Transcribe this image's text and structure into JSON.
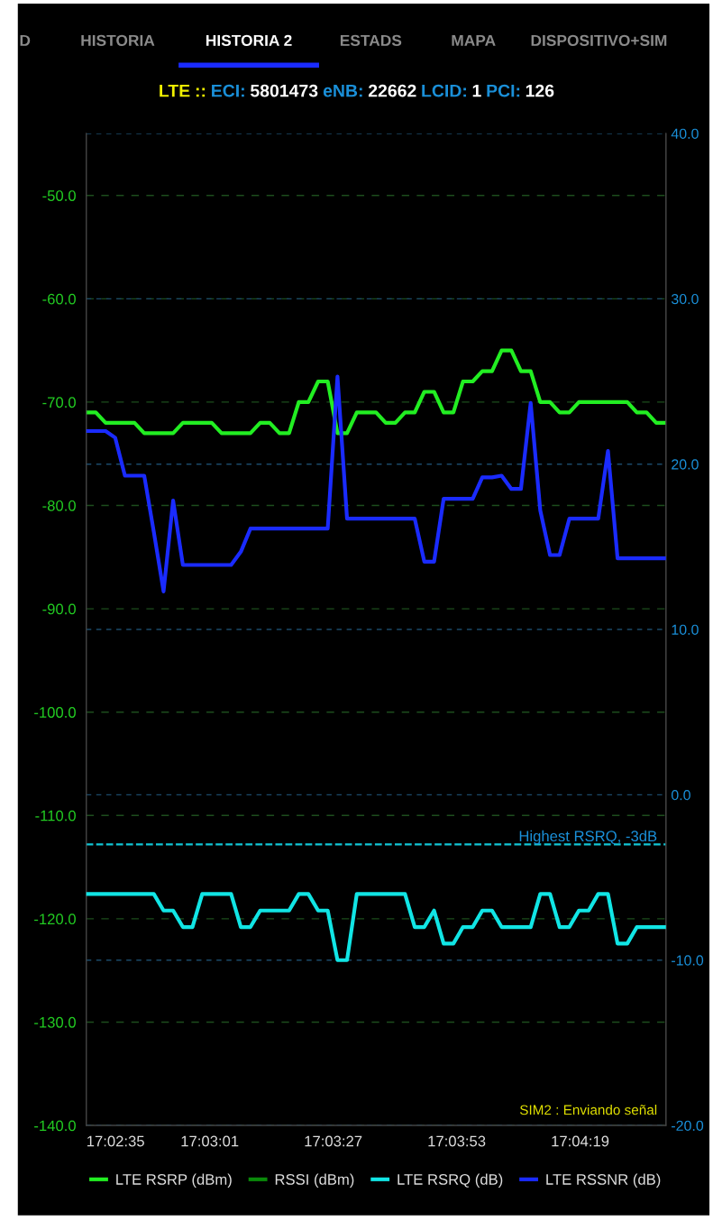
{
  "chart_data": {
    "type": "line",
    "title": "LTE :: ECI: 5801473 eNB: 22662 LCID: 1 PCI: 126",
    "annotations": [
      "D",
      "HISTORIA",
      "HISTORIA 2",
      "ESTADS",
      "MAPA",
      "DISPOSITIVO+SIM",
      "SIM2 : Enviando señal"
    ],
    "x": [
      17.04306,
      17.04362,
      17.04419,
      17.04475,
      17.04532,
      17.04588,
      17.04645,
      17.04701,
      17.04758,
      17.04814,
      17.04871,
      17.04927,
      17.04984,
      17.0504,
      17.05097,
      17.05153,
      17.0521,
      17.05266,
      17.05323,
      17.05379,
      17.05436,
      17.05492,
      17.05549,
      17.05605,
      17.05662,
      17.05718,
      17.05775,
      17.05831,
      17.05888,
      17.05944,
      17.06001,
      17.06057,
      17.06114,
      17.0617,
      17.06227,
      17.06283,
      17.0634,
      17.06396,
      17.06453,
      17.06509,
      17.06566,
      17.06622,
      17.06679,
      17.06735,
      17.06792,
      17.06848,
      17.06905,
      17.06961,
      17.07018,
      17.07074,
      17.07131,
      17.07187,
      17.07244,
      17.073,
      17.07357,
      17.07413,
      17.0747,
      17.07526,
      17.07583,
      17.07639,
      17.07696
    ],
    "series": [
      {
        "name": "LTE RSRP (dBm)",
        "color": "#22ee22",
        "values": [
          -71,
          -71,
          -72,
          -72,
          -72,
          -72,
          -73,
          -73,
          -73,
          -73,
          -72,
          -72,
          -72,
          -72,
          -73,
          -73,
          -73,
          -73,
          -72,
          -72,
          -73,
          -73,
          -70,
          -70,
          -68,
          -68,
          -73,
          -73,
          -71,
          -71,
          -71,
          -72,
          -72,
          -71,
          -71,
          -69,
          -69,
          -71,
          -71,
          -68,
          -68,
          -67,
          -67,
          -65,
          -65,
          -67,
          -67,
          -70,
          -70,
          -71,
          -71,
          -70,
          -70,
          -70,
          -70,
          -70,
          -70,
          -71,
          -71,
          -72,
          -72
        ]
      },
      {
        "name": "RSSI (dBm)",
        "color": "#0a8a0a",
        "values": [
          null,
          null,
          null,
          null,
          null,
          null,
          null,
          null,
          null,
          null,
          null,
          null,
          null,
          null,
          null,
          null,
          null,
          null,
          null,
          null,
          null,
          null,
          null,
          null,
          null,
          null,
          null,
          null,
          null,
          null,
          null,
          null,
          null,
          null,
          null,
          null,
          null,
          null,
          null,
          null,
          null,
          null,
          null,
          null,
          null,
          null,
          null,
          null,
          null,
          null,
          null,
          null,
          null,
          null,
          null,
          null,
          null,
          null,
          null,
          null,
          null
        ]
      },
      {
        "name": "LTE RSRQ (dB)",
        "color": "#11e5e5",
        "axis": "y2",
        "values": [
          -6,
          -6,
          -6,
          -6,
          -6,
          -6,
          -6,
          -6,
          -7,
          -7,
          -8,
          -8,
          -6,
          -6,
          -6,
          -6,
          -8,
          -8,
          -7,
          -7,
          -7,
          -7,
          -6,
          -6,
          -7,
          -7,
          -10,
          -10,
          -6,
          -6,
          -6,
          -6,
          -6,
          -6,
          -8,
          -8,
          -7,
          -9,
          -9,
          -8,
          -8,
          -7,
          -7,
          -8,
          -8,
          -8,
          -8,
          -6,
          -6,
          -8,
          -8,
          -7,
          -7,
          -6,
          -6,
          -9,
          -9,
          -8,
          -8,
          -8,
          -8
        ]
      },
      {
        "name": "LTE RSSNR (dB)",
        "color": "#1a2bff",
        "axis": "y2",
        "values": [
          22.0,
          22.0,
          22.0,
          21.6,
          19.3,
          19.3,
          19.3,
          15.9,
          12.3,
          17.8,
          13.9,
          13.9,
          13.9,
          13.9,
          13.9,
          13.9,
          14.7,
          16.1,
          16.1,
          16.1,
          16.1,
          16.1,
          16.1,
          16.1,
          16.1,
          16.1,
          25.3,
          16.7,
          16.7,
          16.7,
          16.7,
          16.7,
          16.7,
          16.7,
          16.7,
          14.1,
          14.1,
          17.9,
          17.9,
          17.9,
          17.9,
          19.2,
          19.2,
          19.3,
          18.5,
          18.5,
          23.7,
          17.2,
          14.5,
          14.5,
          16.7,
          16.7,
          16.7,
          16.7,
          20.8,
          14.3,
          14.3,
          14.3,
          14.3,
          14.3,
          14.3
        ]
      }
    ],
    "xlim": [
      17.04306,
      17.07696
    ],
    "xticks": [
      {
        "value": 17.04306,
        "label": "17:02:35"
      },
      {
        "value": 17.05028,
        "label": "17:03:01"
      },
      {
        "value": 17.0575,
        "label": "17:03:27"
      },
      {
        "value": 17.06472,
        "label": "17:03:53"
      },
      {
        "value": 17.07194,
        "label": "17:04:19"
      }
    ],
    "ylim": [
      -140,
      -44
    ],
    "yticks": [
      {
        "value": -140,
        "label": "-140.0"
      },
      {
        "value": -130,
        "label": "-130.0"
      },
      {
        "value": -120,
        "label": "-120.0"
      },
      {
        "value": -110,
        "label": "-110.0"
      },
      {
        "value": -100,
        "label": "-100.0"
      },
      {
        "value": -90,
        "label": "-90.0"
      },
      {
        "value": -80,
        "label": "-80.0"
      },
      {
        "value": -70,
        "label": "-70.0"
      },
      {
        "value": -60,
        "label": "-60.0"
      },
      {
        "value": -50,
        "label": "-50.0"
      }
    ],
    "y2lim": [
      -20,
      40
    ],
    "y2ticks": [
      {
        "value": -20,
        "label": "-20.0"
      },
      {
        "value": -10,
        "label": "-10.0"
      },
      {
        "value": 0,
        "label": "0.0"
      },
      {
        "value": 10,
        "label": "10.0"
      },
      {
        "value": 20,
        "label": "20.0"
      },
      {
        "value": 30,
        "label": "30.0"
      },
      {
        "value": 40,
        "label": "40.0"
      }
    ],
    "ref_lines": [
      {
        "axis": "y2",
        "value": -3,
        "label": "Highest RSRQ, -3dB",
        "color": "#11c5d5",
        "line_style": "dashed"
      }
    ],
    "grid": true,
    "legend": "bottom",
    "marker": "none",
    "line_style": "solid"
  }
}
